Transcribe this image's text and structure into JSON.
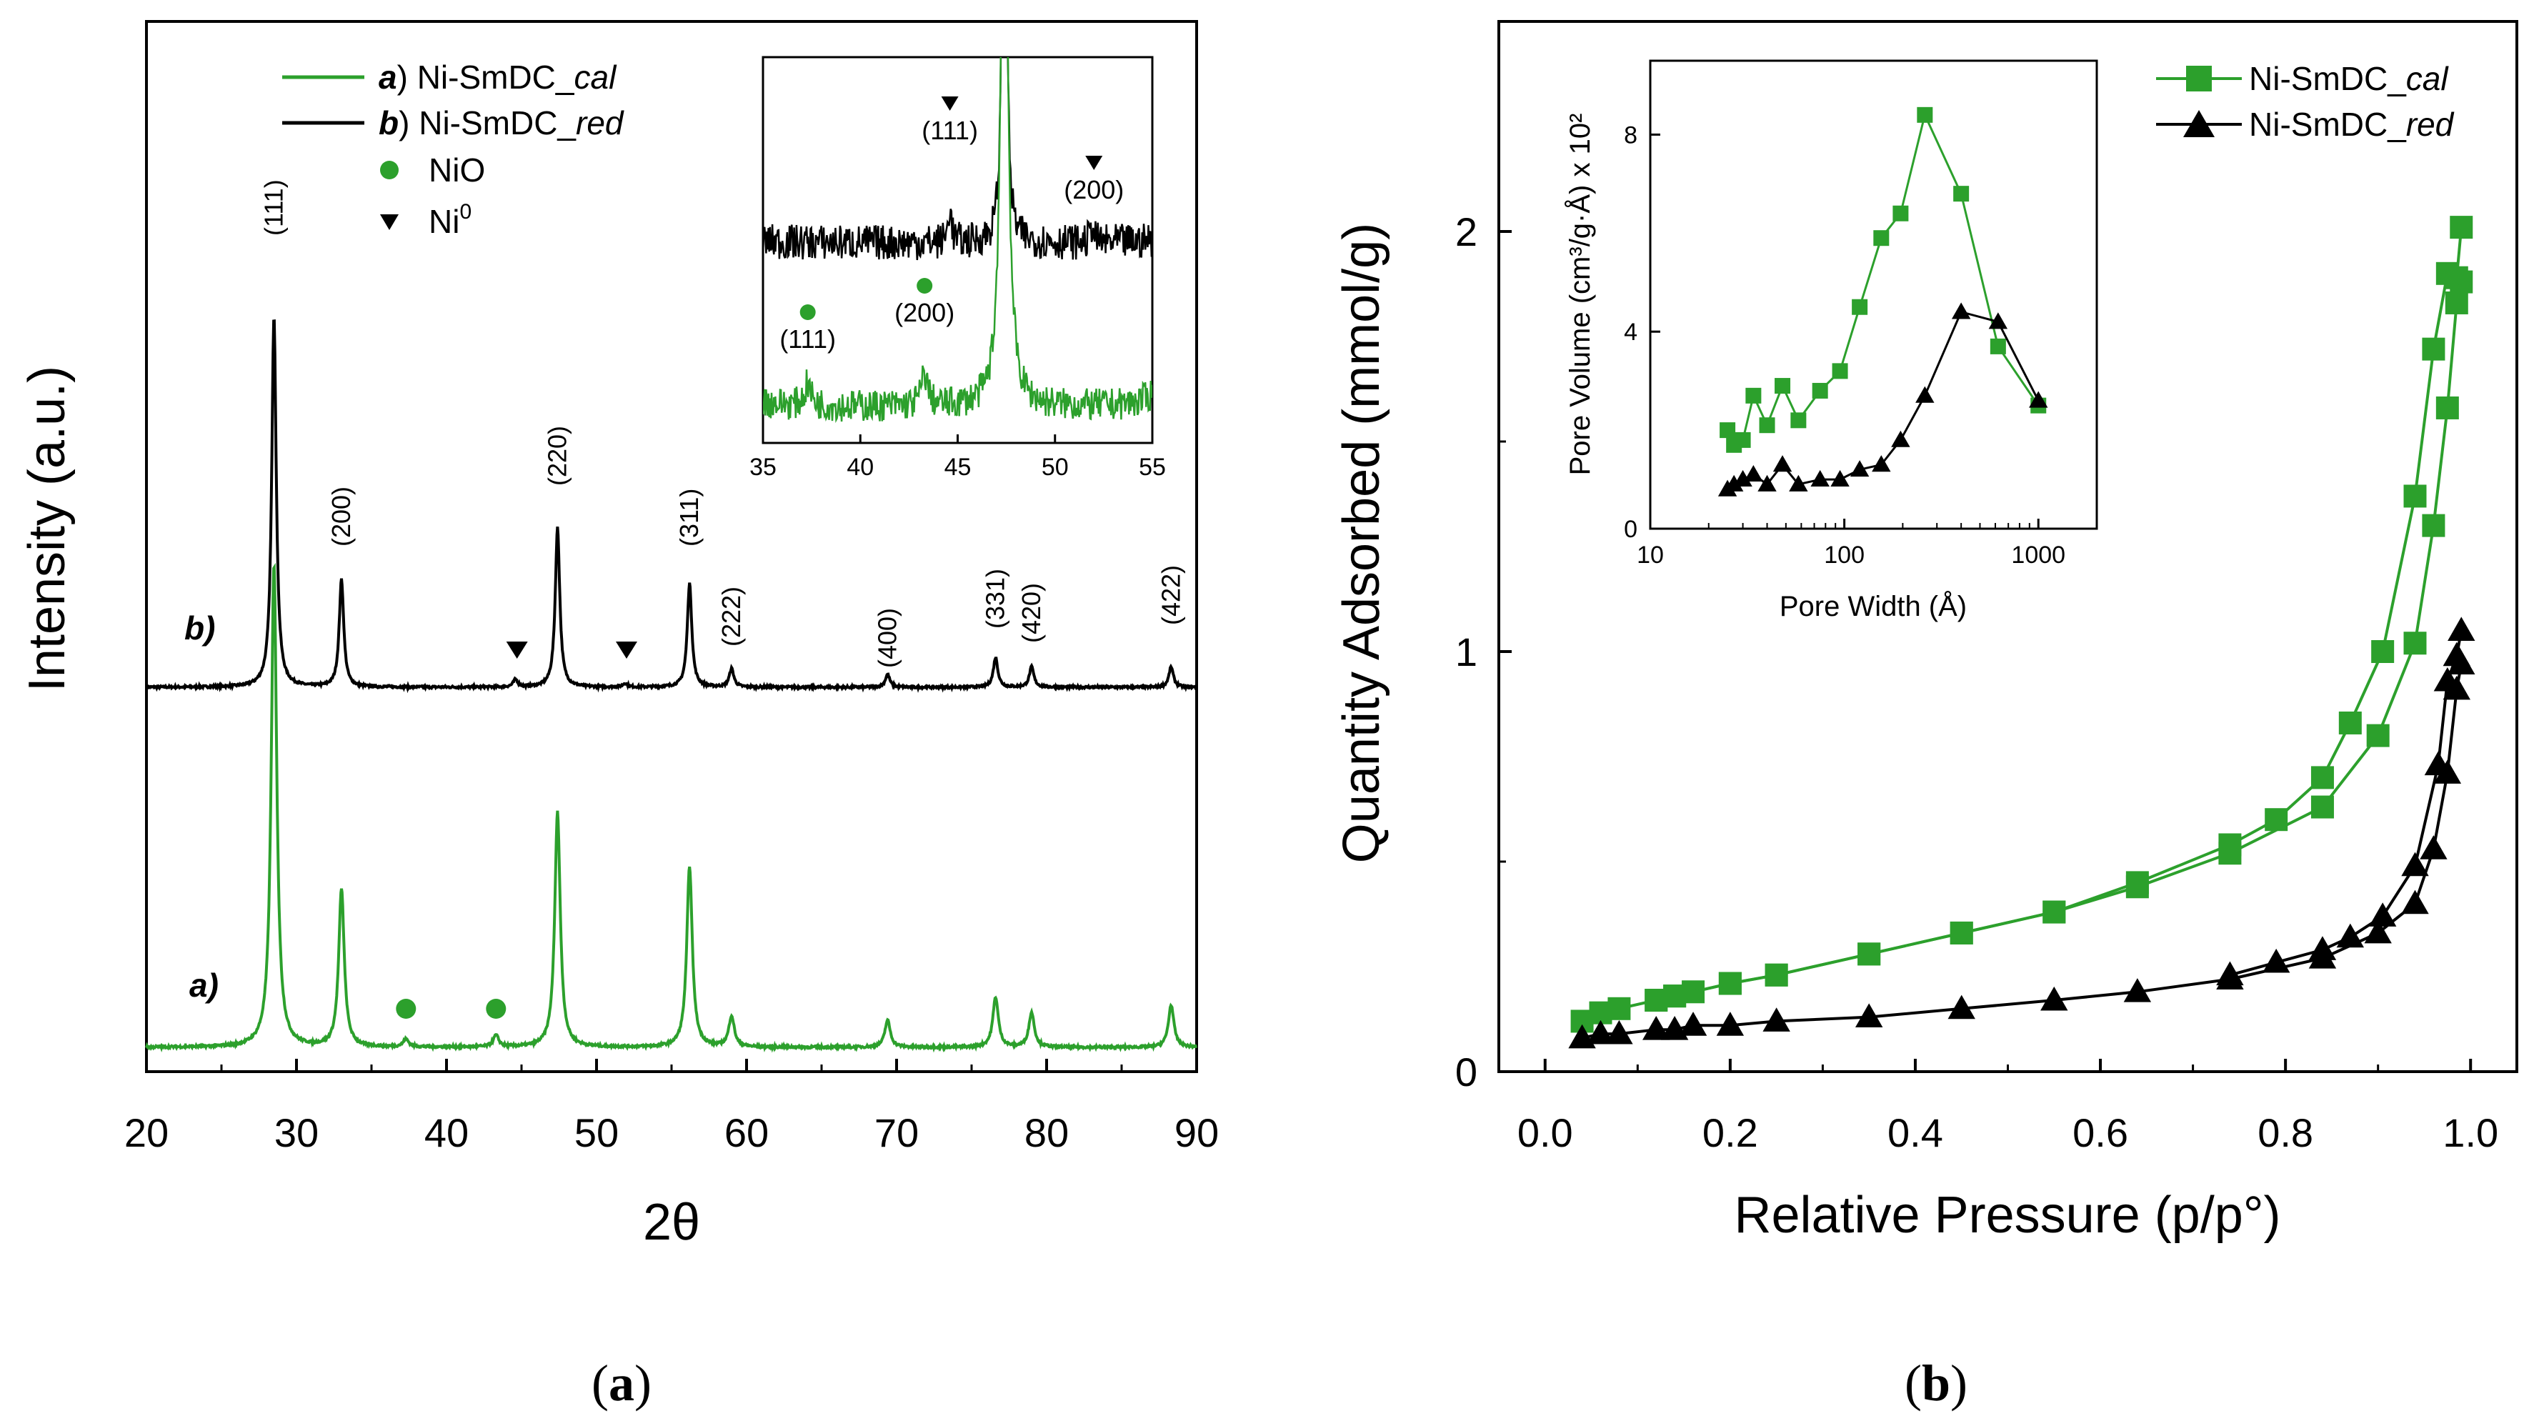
{
  "panels": {
    "a": "a",
    "b": "b"
  },
  "colors": {
    "cal": "#2ca02c",
    "cal_dark": "#1f8a1f",
    "red": "#000000"
  },
  "chart_data": [
    {
      "type": "line",
      "id": "xrd",
      "title": "",
      "xlabel": "2θ",
      "ylabel": "Intensity (a.u.)",
      "xlim": [
        20,
        90
      ],
      "xticks": [
        "20",
        "30",
        "40",
        "50",
        "60",
        "70",
        "80",
        "90"
      ],
      "legend": [
        {
          "marker": "line",
          "letter": "a",
          "text": "Ni-SmDC_",
          "italic": "cal",
          "color": "#2ca02c"
        },
        {
          "marker": "line",
          "letter": "b",
          "text": "Ni-SmDC_",
          "italic": "red",
          "color": "#000000"
        },
        {
          "marker": "circle",
          "text": "NiO",
          "color": "#2ca02c"
        },
        {
          "marker": "triangle-down",
          "text": "Ni",
          "sup": "0",
          "color": "#000000"
        }
      ],
      "series": [
        {
          "name": "a) Ni-SmDC_cal",
          "label": "a)",
          "color": "#2ca02c",
          "peaks": [
            {
              "two_theta": 28.5,
              "rel": 1.25
            },
            {
              "two_theta": 33.0,
              "rel": 0.41
            },
            {
              "two_theta": 37.3,
              "rel": 0.02
            },
            {
              "two_theta": 43.3,
              "rel": 0.03
            },
            {
              "two_theta": 47.4,
              "rel": 0.61
            },
            {
              "two_theta": 56.2,
              "rel": 0.47
            },
            {
              "two_theta": 59.0,
              "rel": 0.08
            },
            {
              "two_theta": 69.4,
              "rel": 0.07
            },
            {
              "two_theta": 76.6,
              "rel": 0.13
            },
            {
              "two_theta": 79.0,
              "rel": 0.09
            },
            {
              "two_theta": 88.3,
              "rel": 0.11
            }
          ],
          "markers": [
            {
              "two_theta": 37.3,
              "type": "circle"
            },
            {
              "two_theta": 43.3,
              "type": "circle"
            }
          ]
        },
        {
          "name": "b) Ni-SmDC_red",
          "label": "b)",
          "color": "#000000",
          "peaks": [
            {
              "two_theta": 28.5,
              "rel": 1.0
            },
            {
              "two_theta": 33.0,
              "rel": 0.29
            },
            {
              "two_theta": 44.6,
              "rel": 0.02
            },
            {
              "two_theta": 47.4,
              "rel": 0.43
            },
            {
              "two_theta": 51.9,
              "rel": 0.01
            },
            {
              "two_theta": 56.2,
              "rel": 0.28
            },
            {
              "two_theta": 59.0,
              "rel": 0.05
            },
            {
              "two_theta": 69.4,
              "rel": 0.035
            },
            {
              "two_theta": 76.6,
              "rel": 0.08
            },
            {
              "two_theta": 79.0,
              "rel": 0.055
            },
            {
              "two_theta": 88.3,
              "rel": 0.055
            }
          ],
          "markers": [
            {
              "two_theta": 44.7,
              "type": "triangle-down"
            },
            {
              "two_theta": 52.0,
              "type": "triangle-down"
            }
          ]
        }
      ],
      "hkl_labels": [
        {
          "two_theta": 28.5,
          "label": "(111)"
        },
        {
          "two_theta": 33.0,
          "label": "(200)"
        },
        {
          "two_theta": 47.4,
          "label": "(220)"
        },
        {
          "two_theta": 56.2,
          "label": "(311)"
        },
        {
          "two_theta": 59.0,
          "label": "(222)"
        },
        {
          "two_theta": 69.4,
          "label": "(400)"
        },
        {
          "two_theta": 76.6,
          "label": "(331)"
        },
        {
          "two_theta": 79.0,
          "label": "(420)"
        },
        {
          "two_theta": 88.3,
          "label": "(422)"
        }
      ],
      "inset": {
        "xlim": [
          35,
          55
        ],
        "xticks": [
          "35",
          "40",
          "45",
          "50",
          "55"
        ],
        "ni_labels": [
          {
            "two_theta": 44.6,
            "label": "(111)"
          },
          {
            "two_theta": 52.0,
            "label": "(200)"
          }
        ],
        "nio_labels": [
          {
            "two_theta": 37.3,
            "label": "(111)"
          },
          {
            "two_theta": 43.3,
            "label": "(200)"
          }
        ]
      }
    },
    {
      "type": "line",
      "id": "isotherm",
      "title": "",
      "xlabel": "Relative Pressure (p/p°)",
      "ylabel": "Quantity Adsorbed (mmol/g)",
      "xlim": [
        -0.05,
        1.05
      ],
      "ylim": [
        0,
        2.5
      ],
      "xticks": [
        0.0,
        0.2,
        0.4,
        0.6,
        0.8,
        1.0
      ],
      "xtick_labels": [
        "0.0",
        "0.2",
        "0.4",
        "0.6",
        "0.8",
        "1.0"
      ],
      "yticks": [
        0,
        1,
        2
      ],
      "ytick_labels": [
        "0",
        "1",
        "2"
      ],
      "legend": [
        {
          "text": "Ni-SmDC_",
          "italic": "cal",
          "marker": "square",
          "color": "#2ca02c"
        },
        {
          "text": "Ni-SmDC_",
          "italic": "red",
          "marker": "triangle",
          "color": "#000000"
        }
      ],
      "series": [
        {
          "name": "Ni-SmDC_cal adsorption",
          "color": "#2ca02c",
          "marker": "square",
          "x": [
            0.04,
            0.06,
            0.08,
            0.12,
            0.14,
            0.16,
            0.2,
            0.25,
            0.35,
            0.45,
            0.55,
            0.64,
            0.74,
            0.84,
            0.9,
            0.94,
            0.96,
            0.975,
            0.985,
            0.99
          ],
          "y": [
            0.12,
            0.14,
            0.15,
            0.17,
            0.18,
            0.19,
            0.21,
            0.23,
            0.28,
            0.33,
            0.38,
            0.44,
            0.52,
            0.63,
            0.8,
            1.02,
            1.3,
            1.58,
            1.83,
            1.88
          ]
        },
        {
          "name": "Ni-SmDC_cal desorption",
          "color": "#2ca02c",
          "marker": "square",
          "x": [
            0.99,
            0.985,
            0.975,
            0.96,
            0.94,
            0.905,
            0.87,
            0.84,
            0.79,
            0.74,
            0.64,
            0.55,
            0.45,
            0.35,
            0.25,
            0.2,
            0.14,
            0.12
          ],
          "y": [
            2.01,
            1.89,
            1.9,
            1.72,
            1.37,
            1.0,
            0.83,
            0.7,
            0.6,
            0.54,
            0.45,
            0.38,
            0.33,
            0.28,
            0.23,
            0.21,
            0.18,
            0.17
          ]
        },
        {
          "name": "Ni-SmDC_red adsorption",
          "color": "#000000",
          "marker": "triangle",
          "x": [
            0.04,
            0.06,
            0.08,
            0.12,
            0.14,
            0.16,
            0.2,
            0.25,
            0.35,
            0.45,
            0.55,
            0.64,
            0.74,
            0.84,
            0.9,
            0.94,
            0.96,
            0.975,
            0.985,
            0.99
          ],
          "y": [
            0.08,
            0.09,
            0.09,
            0.1,
            0.1,
            0.11,
            0.11,
            0.12,
            0.13,
            0.15,
            0.17,
            0.19,
            0.22,
            0.27,
            0.33,
            0.4,
            0.53,
            0.71,
            0.91,
            0.97
          ]
        },
        {
          "name": "Ni-SmDC_red desorption",
          "color": "#000000",
          "marker": "triangle",
          "x": [
            0.99,
            0.985,
            0.975,
            0.965,
            0.94,
            0.905,
            0.87,
            0.84,
            0.79,
            0.74
          ],
          "y": [
            1.05,
            0.99,
            0.93,
            0.73,
            0.49,
            0.37,
            0.32,
            0.29,
            0.26,
            0.23
          ]
        }
      ],
      "inset": {
        "xlabel": "Pore Width (Å)",
        "ylabel": "Pore Volume (cm³/g·Å) x 10²",
        "xscale": "log",
        "xlim": [
          10,
          2000
        ],
        "ylim": [
          0,
          9.5
        ],
        "xticks": [
          10,
          100,
          1000
        ],
        "xtick_labels": [
          "10",
          "100",
          "1000"
        ],
        "yticks": [
          0,
          4,
          8
        ],
        "ytick_labels": [
          "0",
          "4",
          "8"
        ],
        "series": [
          {
            "name": "Ni-SmDC_cal",
            "color": "#2ca02c",
            "marker": "square",
            "x": [
              25,
              27,
              30,
              34,
              40,
              48,
              58,
              75,
              95,
              120,
              155,
              195,
              260,
              400,
              620,
              1000
            ],
            "y": [
              2.0,
              1.7,
              1.8,
              2.7,
              2.1,
              2.9,
              2.2,
              2.8,
              3.2,
              4.5,
              5.9,
              6.4,
              8.4,
              6.8,
              3.7,
              2.5
            ]
          },
          {
            "name": "Ni-SmDC_red",
            "color": "#000000",
            "marker": "triangle",
            "x": [
              25,
              27,
              30,
              34,
              40,
              48,
              58,
              75,
              95,
              120,
              155,
              195,
              260,
              400,
              620,
              1000
            ],
            "y": [
              0.8,
              0.9,
              1.0,
              1.1,
              0.9,
              1.3,
              0.9,
              1.0,
              1.0,
              1.2,
              1.3,
              1.8,
              2.7,
              4.4,
              4.2,
              2.6
            ]
          }
        ]
      }
    }
  ]
}
